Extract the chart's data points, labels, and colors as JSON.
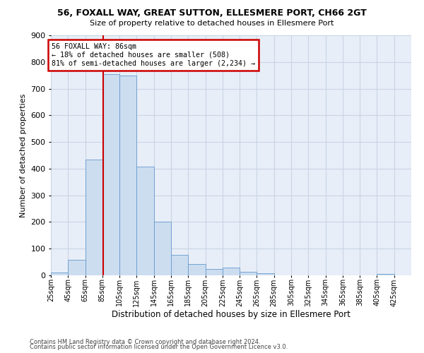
{
  "title1": "56, FOXALL WAY, GREAT SUTTON, ELLESMERE PORT, CH66 2GT",
  "title2": "Size of property relative to detached houses in Ellesmere Port",
  "xlabel": "Distribution of detached houses by size in Ellesmere Port",
  "ylabel": "Number of detached properties",
  "footnote1": "Contains HM Land Registry data © Crown copyright and database right 2024.",
  "footnote2": "Contains public sector information licensed under the Open Government Licence v3.0.",
  "annotation_title": "56 FOXALL WAY: 86sqm",
  "annotation_line1": "← 18% of detached houses are smaller (508)",
  "annotation_line2": "81% of semi-detached houses are larger (2,234) →",
  "property_size": 86,
  "bar_color": "#ccddf0",
  "bar_edge_color": "#6699cc",
  "vline_color": "#cc0000",
  "annotation_box_color": "#ffffff",
  "annotation_box_edge": "#cc0000",
  "grid_color": "#c8d4e4",
  "bg_color": "#e8eef8",
  "categories": [
    "25sqm",
    "45sqm",
    "65sqm",
    "85sqm",
    "105sqm",
    "125sqm",
    "145sqm",
    "165sqm",
    "185sqm",
    "205sqm",
    "225sqm",
    "245sqm",
    "265sqm",
    "285sqm",
    "305sqm",
    "325sqm",
    "345sqm",
    "365sqm",
    "385sqm",
    "405sqm",
    "425sqm"
  ],
  "values": [
    10,
    58,
    435,
    755,
    750,
    408,
    200,
    78,
    42,
    25,
    28,
    12,
    8,
    0,
    0,
    0,
    0,
    0,
    0,
    5,
    0
  ],
  "ylim": [
    0,
    900
  ],
  "yticks": [
    0,
    100,
    200,
    300,
    400,
    500,
    600,
    700,
    800,
    900
  ],
  "bin_width": 20
}
